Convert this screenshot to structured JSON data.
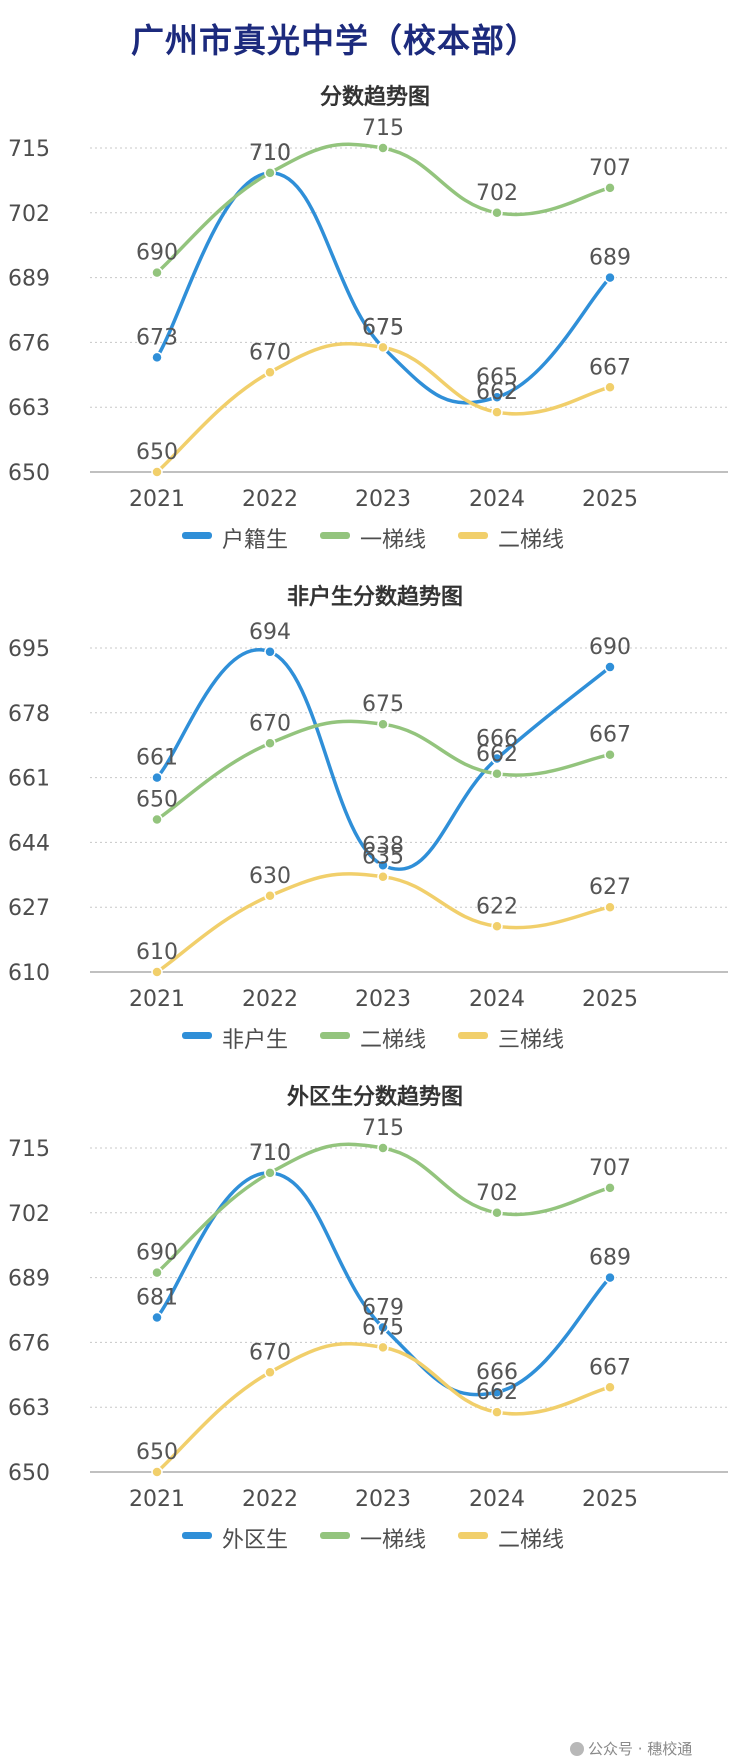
{
  "page": {
    "title": "广州市真光中学（校本部）"
  },
  "watermark": {
    "text": "公众号 · 穗校通"
  },
  "colors": {
    "blue": "#2f8fd8",
    "green": "#93c47d",
    "yellow": "#f1cf6b",
    "grid": "#c8c8c8",
    "text": "#4d4d4d"
  },
  "chart_data": [
    {
      "type": "line",
      "title": "分数趋势图",
      "categories": [
        "2021",
        "2022",
        "2023",
        "2024",
        "2025"
      ],
      "ylim": [
        650,
        715
      ],
      "yticks": [
        "650",
        "663",
        "676",
        "689",
        "702",
        "715"
      ],
      "grid": true,
      "legend": "bottom",
      "series": [
        {
          "name": "户籍生",
          "color": "#2f8fd8",
          "values": [
            673,
            710,
            675,
            665,
            689
          ]
        },
        {
          "name": "一梯线",
          "color": "#93c47d",
          "values": [
            690,
            710,
            715,
            702,
            707
          ]
        },
        {
          "name": "二梯线",
          "color": "#f1cf6b",
          "values": [
            650,
            670,
            675,
            662,
            667
          ]
        }
      ]
    },
    {
      "type": "line",
      "title": "非户生分数趋势图",
      "categories": [
        "2021",
        "2022",
        "2023",
        "2024",
        "2025"
      ],
      "ylim": [
        610,
        695
      ],
      "yticks": [
        "610",
        "627",
        "644",
        "661",
        "678",
        "695"
      ],
      "grid": true,
      "legend": "bottom",
      "series": [
        {
          "name": "非户生",
          "color": "#2f8fd8",
          "values": [
            661,
            694,
            638,
            666,
            690
          ]
        },
        {
          "name": "二梯线",
          "color": "#93c47d",
          "values": [
            650,
            670,
            675,
            662,
            667
          ]
        },
        {
          "name": "三梯线",
          "color": "#f1cf6b",
          "values": [
            610,
            630,
            635,
            622,
            627
          ]
        }
      ]
    },
    {
      "type": "line",
      "title": "外区生分数趋势图",
      "categories": [
        "2021",
        "2022",
        "2023",
        "2024",
        "2025"
      ],
      "ylim": [
        650,
        715
      ],
      "yticks": [
        "650",
        "663",
        "676",
        "689",
        "702",
        "715"
      ],
      "grid": true,
      "legend": "bottom",
      "series": [
        {
          "name": "外区生",
          "color": "#2f8fd8",
          "values": [
            681,
            710,
            679,
            666,
            689
          ]
        },
        {
          "name": "一梯线",
          "color": "#93c47d",
          "values": [
            690,
            710,
            715,
            702,
            707
          ]
        },
        {
          "name": "二梯线",
          "color": "#f1cf6b",
          "values": [
            650,
            670,
            675,
            662,
            667
          ]
        }
      ]
    }
  ]
}
